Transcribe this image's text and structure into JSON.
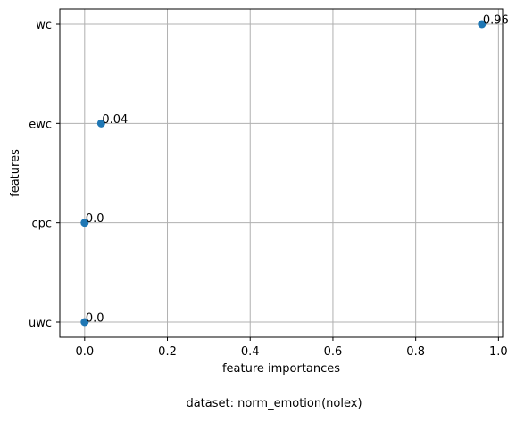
{
  "chart_data": {
    "type": "scatter",
    "title": "",
    "xlabel": "feature importances",
    "ylabel": "features",
    "caption": "dataset: norm_emotion(nolex)",
    "categories": [
      "uwc",
      "cpc",
      "ewc",
      "wc"
    ],
    "xlim": [
      -0.06,
      1.01
    ],
    "xticks": [
      0.0,
      0.2,
      0.4,
      0.6,
      0.8,
      1.0
    ],
    "xtick_labels": [
      "0.0",
      "0.2",
      "0.4",
      "0.6",
      "0.8",
      "1.0"
    ],
    "grid": true,
    "points": [
      {
        "feature": "uwc",
        "value": 0.0,
        "label": "0.0"
      },
      {
        "feature": "cpc",
        "value": 0.0,
        "label": "0.0"
      },
      {
        "feature": "ewc",
        "value": 0.04,
        "label": "0.04"
      },
      {
        "feature": "wc",
        "value": 0.96,
        "label": "0.96"
      }
    ],
    "colors": {
      "point": "#1f77b4",
      "grid": "#b0b0b0",
      "axis": "#000000"
    }
  }
}
